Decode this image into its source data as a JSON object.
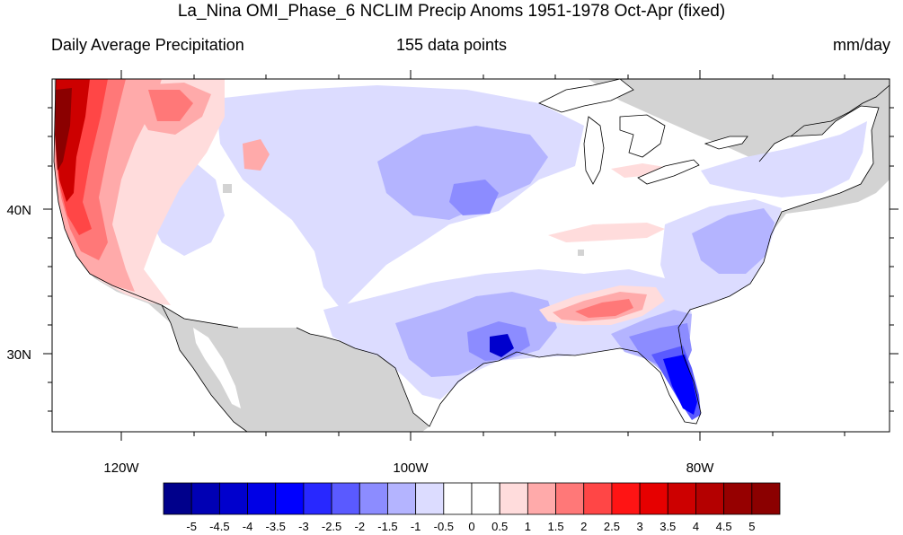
{
  "title": "La_Nina OMI_Phase_6 NCLIM Precip Anoms 1951-1978 Oct-Apr (fixed)",
  "subtitle_left": "Daily Average Precipitation",
  "subtitle_center": "155 data points",
  "subtitle_right": "mm/day",
  "axes": {
    "lon_labels": [
      "120W",
      "100W",
      "80W"
    ],
    "lat_labels": [
      "40N",
      "30N"
    ]
  },
  "colorbar": {
    "labels": [
      "-5",
      "-4.5",
      "-4",
      "-3.5",
      "-3",
      "-2.5",
      "-2",
      "-1.5",
      "-1",
      "-0.5",
      "0",
      "0.5",
      "1",
      "1.5",
      "2",
      "2.5",
      "3",
      "3.5",
      "4",
      "4.5",
      "5"
    ],
    "colors": [
      "#00008b",
      "#0000b4",
      "#0000cd",
      "#0000e6",
      "#0000ff",
      "#2828ff",
      "#5a5aff",
      "#8c8cff",
      "#b4b4ff",
      "#dcdcff",
      "#ffffff",
      "#ffffff",
      "#ffdcdc",
      "#ffaaaa",
      "#ff7878",
      "#ff4646",
      "#ff1414",
      "#e60000",
      "#cd0000",
      "#b40000",
      "#960000",
      "#8b0000"
    ]
  },
  "colors": {
    "land_missing": "#d3d3d3",
    "water": "#ffffff",
    "outline": "#000000"
  }
}
